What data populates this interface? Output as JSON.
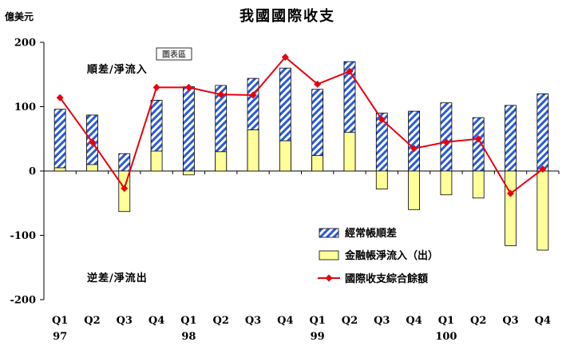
{
  "title": "我國國際收支",
  "unit": "億美元",
  "annotations": {
    "surplus": "順差/淨流入",
    "deficit": "逆差/淨流出",
    "badge": "圖表區"
  },
  "chart_data": {
    "type": "bar",
    "ylim": [
      -200,
      200
    ],
    "yticks": [
      -200,
      -100,
      0,
      100,
      200
    ],
    "grid": false,
    "legend_position": "bottom-right",
    "categories": [
      "Q1",
      "Q2",
      "Q3",
      "Q4",
      "Q1",
      "Q2",
      "Q3",
      "Q4",
      "Q1",
      "Q2",
      "Q3",
      "Q4",
      "Q1",
      "Q2",
      "Q3",
      "Q4"
    ],
    "years": [
      {
        "label": "97",
        "index": 0
      },
      {
        "label": "98",
        "index": 4
      },
      {
        "label": "99",
        "index": 8
      },
      {
        "label": "100",
        "index": 12
      }
    ],
    "series": [
      {
        "name": "經常帳順差",
        "kind": "bar",
        "style": "hatched",
        "color": "#2a5ad8",
        "values": [
          96,
          87,
          27,
          110,
          131,
          133,
          144,
          160,
          127,
          170,
          90,
          93,
          106,
          83,
          102,
          120
        ]
      },
      {
        "name": "金融帳淨流入（出）",
        "kind": "bar",
        "style": "solid",
        "color": "#ffff99",
        "values": [
          5,
          10,
          -63,
          31,
          -6,
          30,
          64,
          47,
          24,
          60,
          -28,
          -60,
          -37,
          -42,
          -116,
          -123
        ]
      },
      {
        "name": "國際收支綜合餘額",
        "kind": "line",
        "marker": "diamond",
        "color": "#e8000e",
        "values": [
          114,
          45,
          -27,
          130,
          130,
          119,
          118,
          177,
          135,
          155,
          80,
          35,
          45,
          50,
          -35,
          3
        ]
      }
    ]
  }
}
